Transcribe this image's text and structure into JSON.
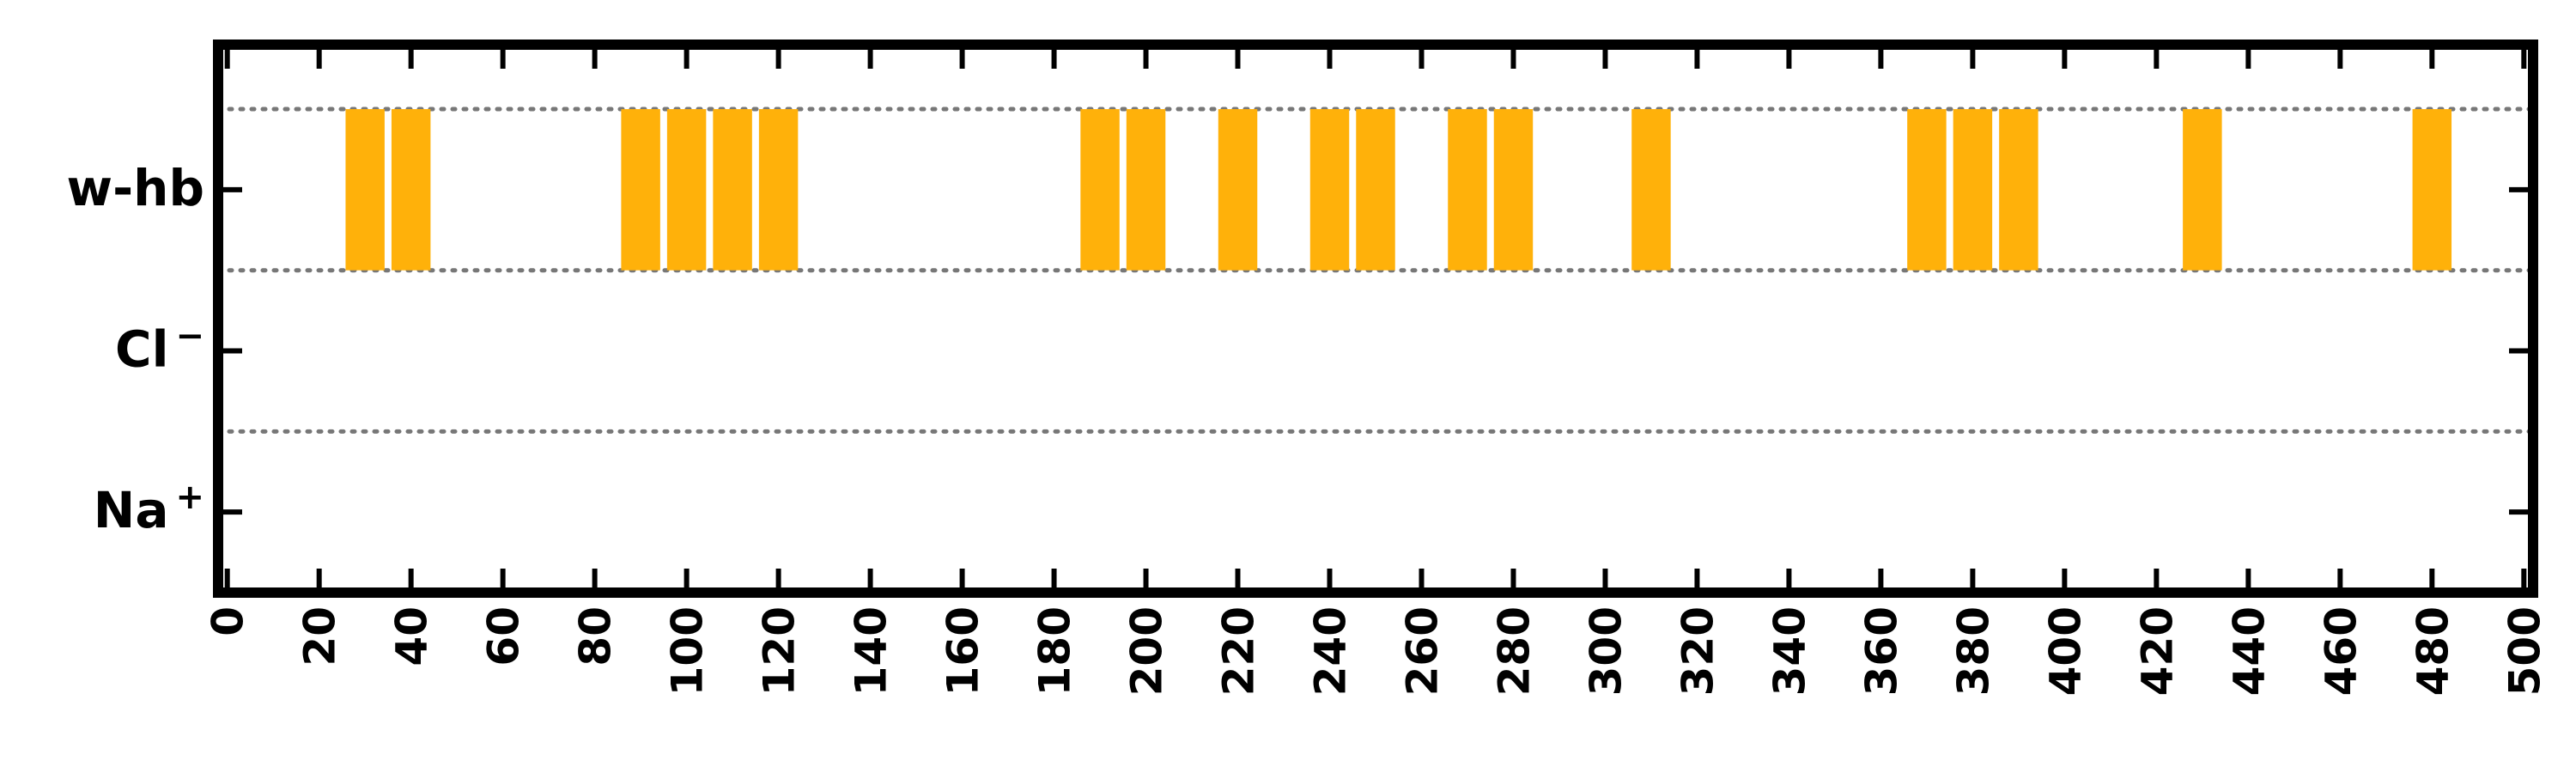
{
  "chart_data": {
    "type": "bar",
    "title": "",
    "xlabel": "",
    "ylabel": "",
    "xlim": [
      -2,
      502
    ],
    "xticks": [
      0,
      20,
      40,
      60,
      80,
      100,
      120,
      140,
      160,
      180,
      200,
      220,
      240,
      260,
      280,
      300,
      320,
      340,
      360,
      380,
      400,
      420,
      440,
      460,
      480,
      500
    ],
    "xtick_labels": [
      "0",
      "20",
      "40",
      "60",
      "80",
      "100",
      "120",
      "140",
      "160",
      "180",
      "200",
      "220",
      "240",
      "260",
      "280",
      "300",
      "320",
      "340",
      "360",
      "380",
      "400",
      "420",
      "440",
      "460",
      "480",
      "500"
    ],
    "categories": [
      "Na⁺",
      "Cl⁻",
      "w-hb"
    ],
    "category_labels": [
      {
        "base": "Na",
        "sup": "+"
      },
      {
        "base": "Cl",
        "sup": "−"
      },
      {
        "base": "w-hb",
        "sup": ""
      }
    ],
    "bar_width": 8.5,
    "series": [
      {
        "category": "w-hb",
        "color": "#FFB10A",
        "x": [
          30,
          40,
          90,
          100,
          110,
          120,
          190,
          200,
          220,
          240,
          250,
          270,
          280,
          310,
          370,
          380,
          390,
          430,
          480
        ]
      },
      {
        "category": "Cl⁻",
        "color": "#FFB10A",
        "x": []
      },
      {
        "category": "Na⁺",
        "color": "#FFB10A",
        "x": []
      }
    ],
    "separators": [
      0.5,
      1.5,
      2.5
    ],
    "grid": false,
    "legend": "none",
    "colors": {
      "bar": "#FFB10A",
      "separator": "#777777",
      "frame": "#000000"
    }
  }
}
